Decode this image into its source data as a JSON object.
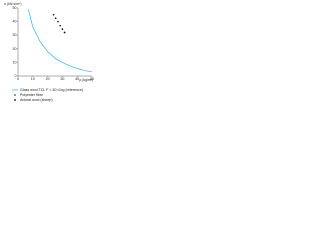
{
  "chart_data": {
    "type": "line",
    "y_label": "σ (kN·s/m⁴)",
    "x_label": "ρ (kg/m³)",
    "xlim": [
      0,
      50
    ],
    "xticks": [
      0,
      10,
      20,
      30,
      40,
      50
    ],
    "ylim": [
      0,
      50
    ],
    "yticks": [
      0,
      10,
      20,
      30,
      40,
      50
    ],
    "series": [
      {
        "name": "Glass wool TCL F < 50 d.bg (reference)",
        "color": "#29b6e8",
        "type": "line",
        "x": [
          7,
          10,
          15,
          20,
          25,
          30,
          35,
          40,
          45,
          50
        ],
        "values": [
          49,
          36,
          25,
          18,
          13,
          10,
          7.5,
          5.5,
          4,
          3
        ]
      },
      {
        "name": "Polyester fibre",
        "color": "#111111",
        "type": "scatter",
        "marker": "circle",
        "x": [
          24,
          25.5,
          27,
          28.5
        ],
        "values": [
          45,
          42.5,
          40,
          37
        ]
      },
      {
        "name": "Animal wool (sheep)",
        "color": "#111111",
        "type": "scatter",
        "marker": "diamond",
        "x": [
          30,
          31.5
        ],
        "values": [
          34.5,
          32
        ]
      }
    ]
  }
}
